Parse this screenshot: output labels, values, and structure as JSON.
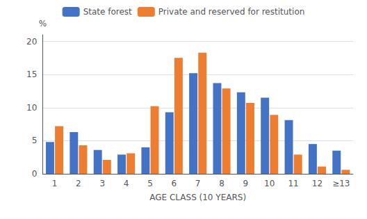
{
  "chart_data": {
    "type": "bar",
    "categories": [
      "1",
      "2",
      "3",
      "4",
      "5",
      "6",
      "7",
      "8",
      "9",
      "10",
      "11",
      "12",
      "≥13"
    ],
    "series": [
      {
        "name": "State forest",
        "color": "#4472c4",
        "values": [
          4.8,
          6.3,
          3.6,
          2.9,
          4.0,
          9.3,
          15.2,
          13.7,
          12.3,
          11.5,
          8.1,
          4.5,
          3.5
        ]
      },
      {
        "name": "Private and reserved for restitution",
        "color": "#ed7d31",
        "values": [
          7.2,
          4.3,
          2.1,
          3.1,
          10.2,
          17.5,
          18.3,
          12.9,
          10.7,
          8.9,
          2.9,
          1.1,
          0.6
        ]
      }
    ],
    "xlabel": "AGE CLASS (10 YEARS)",
    "ylabel": "%",
    "ylim": [
      0,
      21
    ],
    "yticks": [
      0,
      5,
      10,
      15,
      20
    ],
    "grid": true,
    "legend": "top"
  }
}
